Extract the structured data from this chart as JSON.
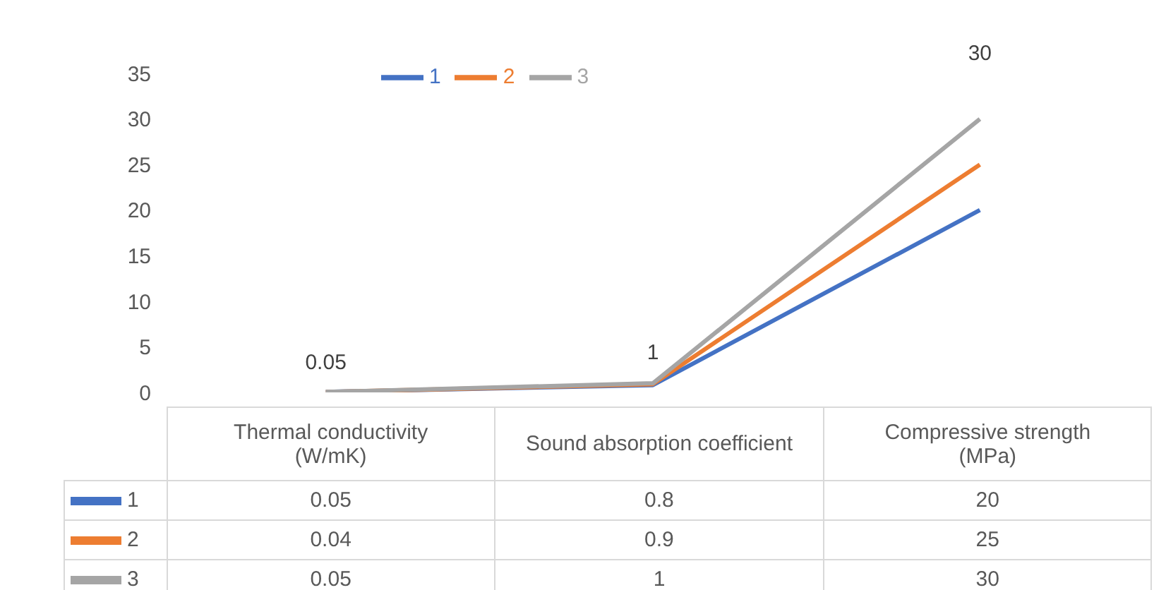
{
  "chart_data": {
    "type": "line",
    "categories": [
      "Thermal conductivity (W/mK)",
      "Sound absorption coefficient",
      "Compressive strength (MPa)"
    ],
    "series": [
      {
        "name": "1",
        "color": "#4472c4",
        "values": [
          0.05,
          0.8,
          20
        ]
      },
      {
        "name": "2",
        "color": "#ed7d31",
        "values": [
          0.04,
          0.9,
          25
        ]
      },
      {
        "name": "3",
        "color": "#a5a5a5",
        "values": [
          0.05,
          1,
          30
        ]
      }
    ],
    "annotations": [
      {
        "text": "0.05",
        "x": "Thermal conductivity (W/mK)",
        "y": 0.05
      },
      {
        "text": "1",
        "x": "Sound absorption coefficient",
        "y": 1
      },
      {
        "text": "30",
        "x": "Compressive strength (MPa)",
        "y": 30
      }
    ],
    "ylim": [
      0,
      35
    ],
    "yticks": [
      0,
      5,
      10,
      15,
      20,
      25,
      30,
      35
    ],
    "legend": "top",
    "marker": "none",
    "line_style": "solid",
    "data_labels": true
  }
}
